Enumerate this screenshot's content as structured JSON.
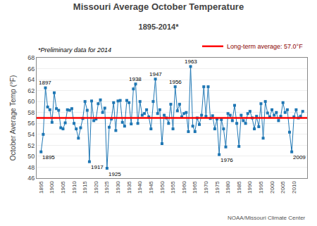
{
  "chart_data": {
    "type": "line",
    "title": "Missouri Average October Temperature",
    "subtitle": "1895-2014*",
    "ylabel": "October Average Temp (°F)",
    "footnote": "*Preliminary data for 2014",
    "credit": "NOAA/Missouri Climate Center",
    "x": [
      1895,
      1896,
      1897,
      1898,
      1899,
      1900,
      1901,
      1902,
      1903,
      1904,
      1905,
      1906,
      1907,
      1908,
      1909,
      1910,
      1911,
      1912,
      1913,
      1914,
      1915,
      1916,
      1917,
      1918,
      1919,
      1920,
      1921,
      1922,
      1923,
      1924,
      1925,
      1926,
      1927,
      1928,
      1929,
      1930,
      1931,
      1932,
      1933,
      1934,
      1935,
      1936,
      1937,
      1938,
      1939,
      1940,
      1941,
      1942,
      1943,
      1944,
      1945,
      1946,
      1947,
      1948,
      1949,
      1950,
      1951,
      1952,
      1953,
      1954,
      1955,
      1956,
      1957,
      1958,
      1959,
      1960,
      1961,
      1962,
      1963,
      1964,
      1965,
      1966,
      1967,
      1968,
      1969,
      1970,
      1971,
      1972,
      1973,
      1974,
      1975,
      1976,
      1977,
      1978,
      1979,
      1980,
      1981,
      1982,
      1983,
      1984,
      1985,
      1986,
      1987,
      1988,
      1989,
      1990,
      1991,
      1992,
      1993,
      1994,
      1995,
      1996,
      1997,
      1998,
      1999,
      2000,
      2001,
      2002,
      2003,
      2004,
      2005,
      2006,
      2007,
      2008,
      2009,
      2010,
      2011,
      2012,
      2013,
      2014
    ],
    "series": [
      {
        "marker": "square",
        "values": [
          50.8,
          54.0,
          62.5,
          59.0,
          58.5,
          56.2,
          61.6,
          58.7,
          58.4,
          55.2,
          55.0,
          56.1,
          58.5,
          58.4,
          58.7,
          56.0,
          55.0,
          53.3,
          55.2,
          56.9,
          60.0,
          58.4,
          49.0,
          60.1,
          56.5,
          56.8,
          59.6,
          60.3,
          58.0,
          58.8,
          47.8,
          55.3,
          56.8,
          59.8,
          54.7,
          60.1,
          60.2,
          56.2,
          55.5,
          60.2,
          59.8,
          55.9,
          62.3,
          63.2,
          56.0,
          60.0,
          57.5,
          57.8,
          58.5,
          57.2,
          55.0,
          60.0,
          64.1,
          57.8,
          58.5,
          52.3,
          57.5,
          57.0,
          56.0,
          59.5,
          55.0,
          62.7,
          58.3,
          59.5,
          57.2,
          57.8,
          58.0,
          54.5,
          66.4,
          55.5,
          54.5,
          57.0,
          55.8,
          57.5,
          62.7,
          57.3,
          62.7,
          56.9,
          57.4,
          55.0,
          56.8,
          50.3,
          56.7,
          55.0,
          51.7,
          57.8,
          57.5,
          56.5,
          59.3,
          56.0,
          51.8,
          57.5,
          56.5,
          56.0,
          57.8,
          58.2,
          57.0,
          55.0,
          57.3,
          55.4,
          59.6,
          53.3,
          60.0,
          57.9,
          57.2,
          58.5,
          57.5,
          58.0,
          56.5,
          57.3,
          59.8,
          58.0,
          58.5,
          54.4,
          50.8,
          57.2,
          58.5,
          57.0,
          57.3,
          58.2
        ]
      }
    ],
    "hlines": [
      {
        "name": "Long-term average: 57.0°F",
        "value": 57.0,
        "color": "#FF0000"
      }
    ],
    "legend": "upper right",
    "annotations": [
      {
        "text": "1895",
        "x": 1895,
        "y": 50.8
      },
      {
        "text": "1897",
        "x": 1897,
        "y": 62.5
      },
      {
        "text": "1917",
        "x": 1917,
        "y": 49.0
      },
      {
        "text": "1925",
        "x": 1925,
        "y": 47.8
      },
      {
        "text": "1938",
        "x": 1938,
        "y": 63.2
      },
      {
        "text": "1947",
        "x": 1947,
        "y": 64.1
      },
      {
        "text": "1956",
        "x": 1956,
        "y": 62.7
      },
      {
        "text": "1963",
        "x": 1963,
        "y": 66.4
      },
      {
        "text": "1976",
        "x": 1976,
        "y": 50.3
      },
      {
        "text": "2009",
        "x": 2009,
        "y": 50.8
      }
    ],
    "xlim": [
      1893,
      2016
    ],
    "xticks": [
      1895,
      1900,
      1905,
      1910,
      1915,
      1920,
      1925,
      1930,
      1935,
      1940,
      1945,
      1950,
      1955,
      1960,
      1965,
      1970,
      1975,
      1980,
      1985,
      1990,
      1995,
      2000,
      2005,
      2010
    ],
    "ylim": [
      46,
      68
    ],
    "yticks": [
      46,
      48,
      50,
      52,
      54,
      56,
      58,
      60,
      62,
      64,
      66,
      68
    ],
    "grid": "y"
  }
}
